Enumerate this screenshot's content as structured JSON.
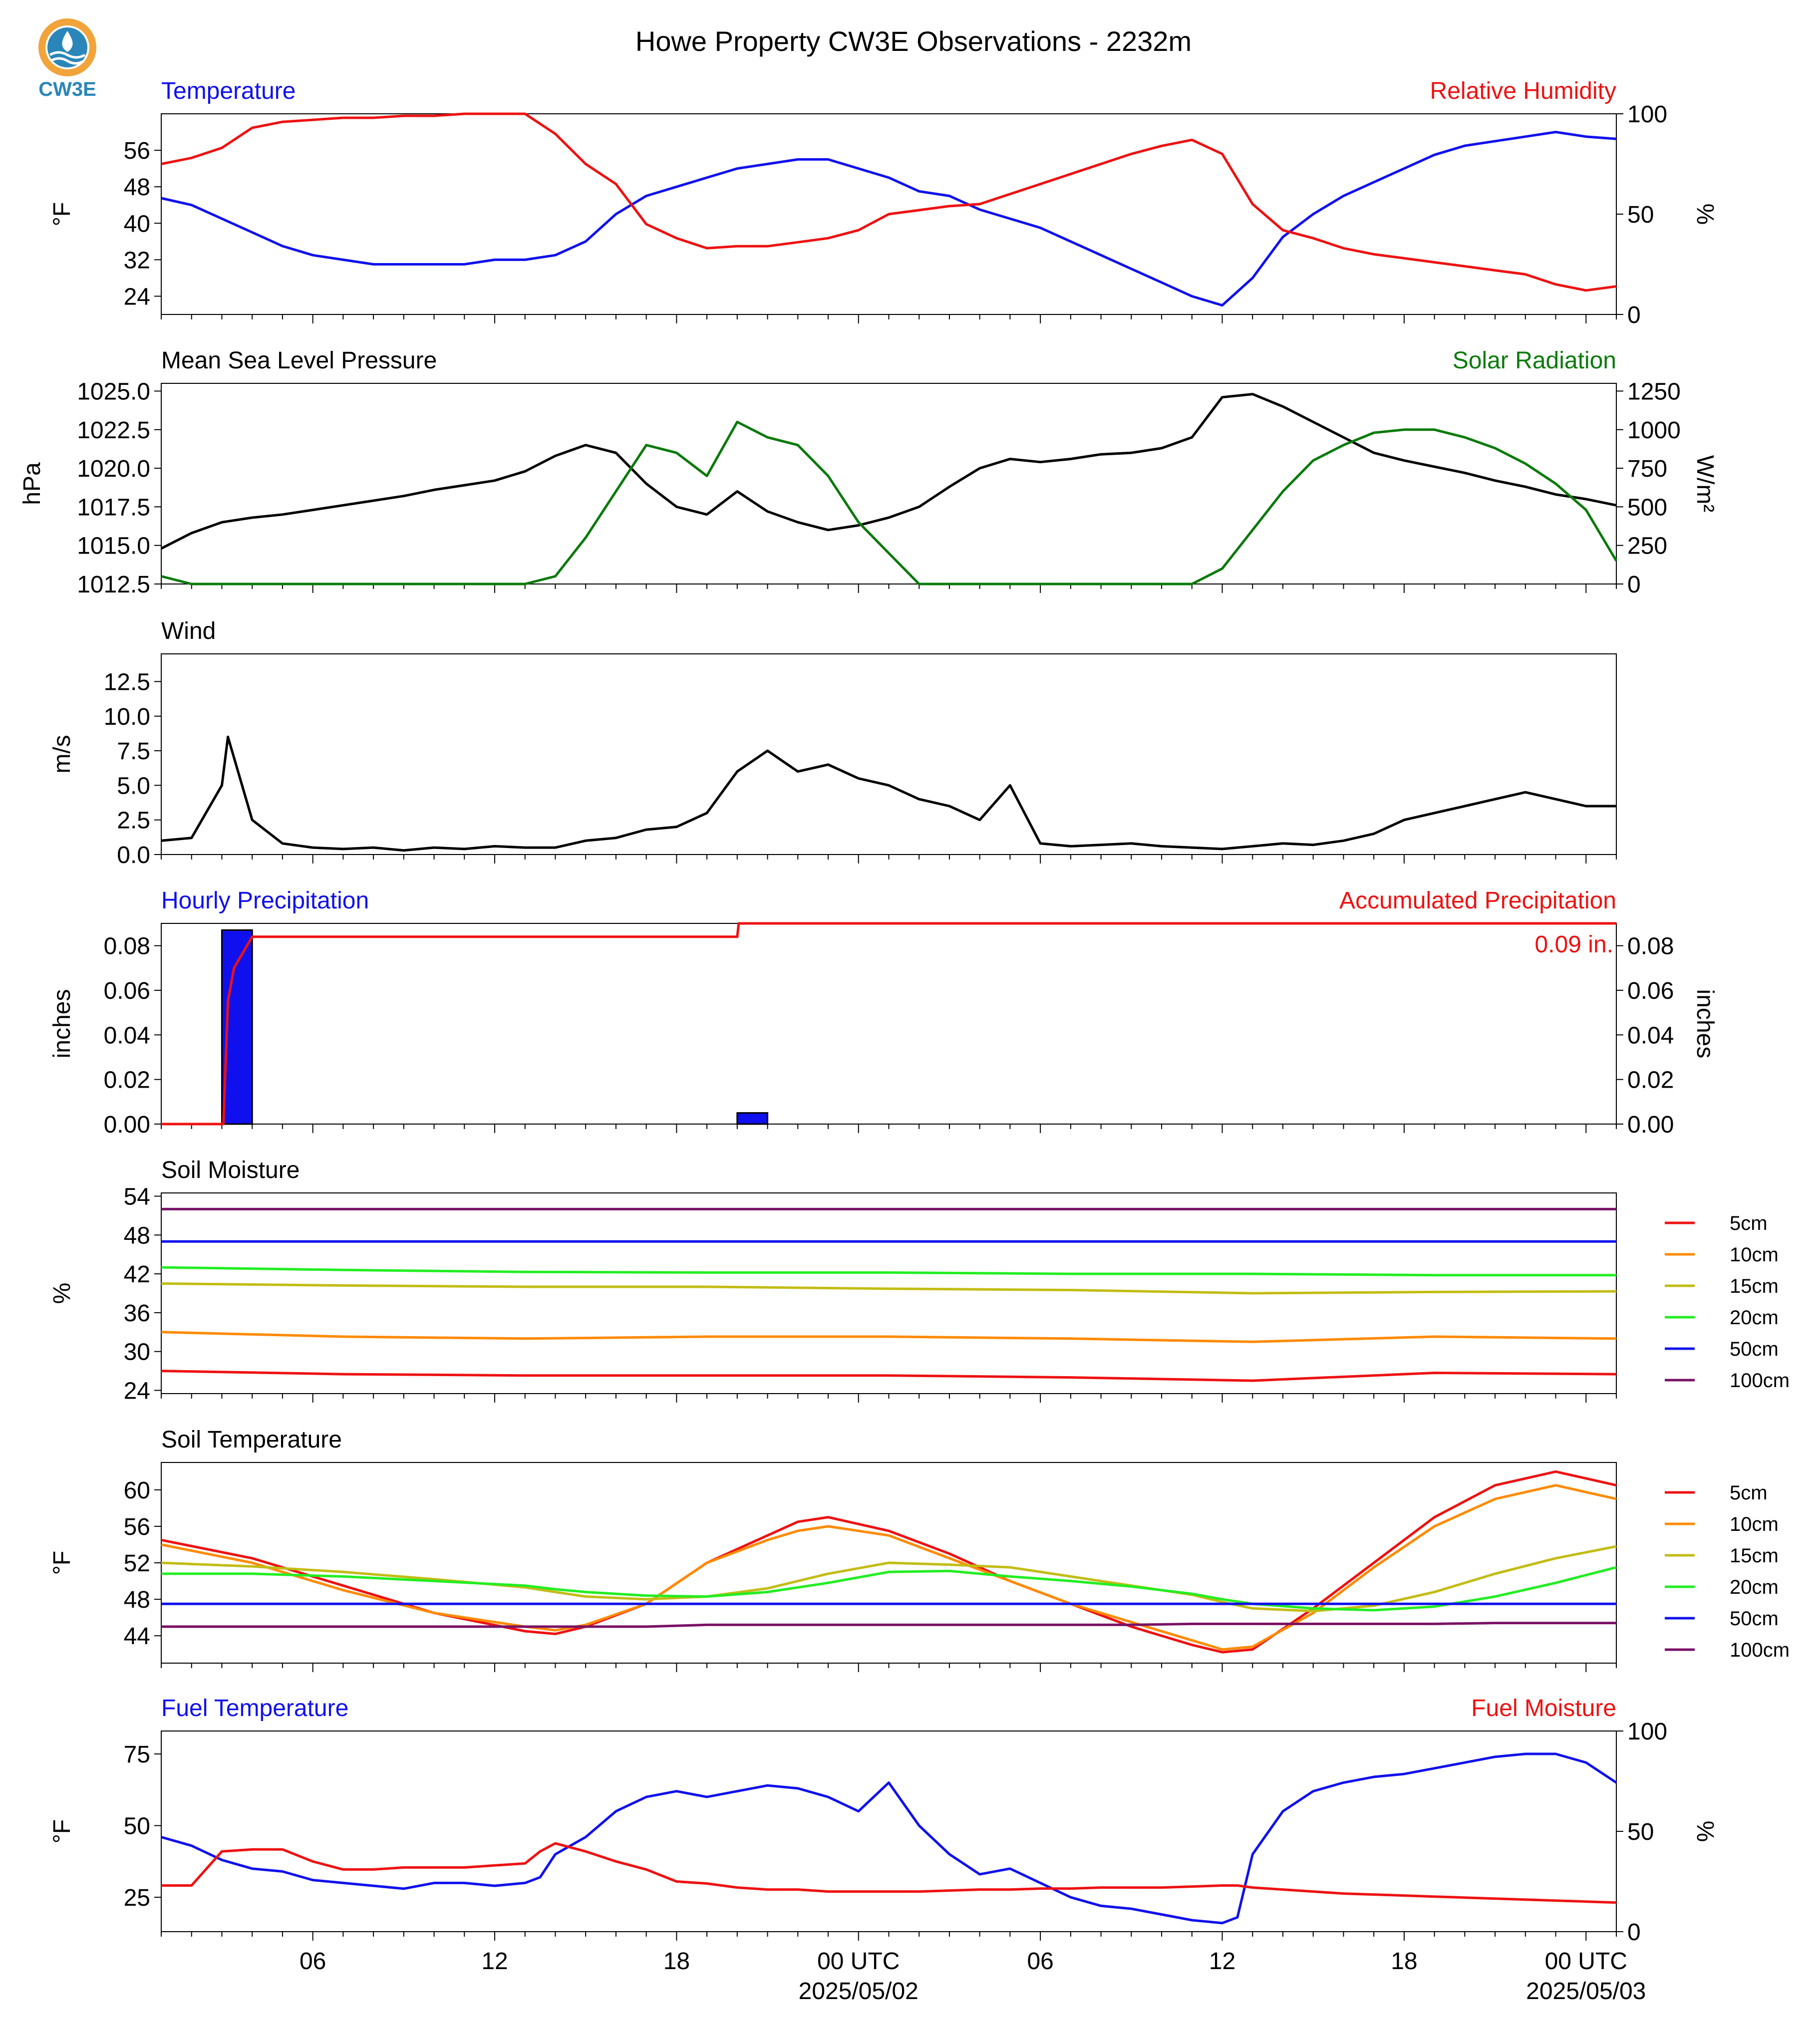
{
  "page": {
    "title": "Howe Property CW3E Observations - 2232m",
    "logo_text": "CW3E"
  },
  "x_axis": {
    "tick_labels": [
      "06",
      "12",
      "18",
      "00 UTC",
      "06",
      "12",
      "18",
      "00 UTC"
    ],
    "date_labels": [
      "2025/05/02",
      "2025/05/03"
    ]
  },
  "legend_soil": [
    "5cm",
    "10cm",
    "15cm",
    "20cm",
    "50cm",
    "100cm"
  ],
  "colors": {
    "blue": "#1010ee",
    "red": "#ee1111",
    "green": "#0a7a0a",
    "black": "#000000",
    "orange": "#ff8a00",
    "olive": "#c2bc14",
    "lime": "#22ee22",
    "purple": "#7a1166"
  },
  "chart_data": [
    {
      "type": "line",
      "panel": "temperature_rh",
      "title_left": "Temperature",
      "title_right": "Relative Humidity",
      "ylabel": "°F",
      "ylabel_right": "%",
      "ylim": [
        20,
        64
      ],
      "ylim_right": [
        0,
        100
      ],
      "yticks": [
        24,
        32,
        40,
        48,
        56
      ],
      "yticks_right": [
        0,
        50,
        100
      ],
      "x": [
        0,
        1,
        2,
        3,
        4,
        5,
        6,
        7,
        8,
        9,
        10,
        11,
        12,
        13,
        14,
        15,
        16,
        17,
        18,
        19,
        20,
        21,
        22,
        23,
        24,
        25,
        26,
        27,
        28,
        29,
        30,
        31,
        32,
        33,
        34,
        35,
        36,
        37,
        38,
        39,
        40,
        41,
        42,
        43,
        44,
        45,
        46,
        47,
        48
      ],
      "series": [
        {
          "name": "Temperature",
          "axis": "left",
          "color": "#1010ee",
          "values": [
            45.5,
            44,
            41,
            38,
            35,
            33,
            32,
            31,
            31,
            31,
            31,
            32,
            32,
            33,
            36,
            42,
            46,
            48,
            50,
            52,
            53,
            54,
            54,
            52,
            50,
            47,
            46,
            43,
            41,
            39,
            36,
            33,
            30,
            27,
            24,
            22,
            28,
            37,
            42,
            46,
            49,
            52,
            55,
            57,
            58,
            59,
            60,
            59,
            58.5
          ]
        },
        {
          "name": "Relative Humidity",
          "axis": "right",
          "color": "#ee1111",
          "values": [
            75,
            78,
            83,
            93,
            96,
            97,
            98,
            98,
            99,
            99,
            100,
            100,
            100,
            90,
            75,
            65,
            45,
            38,
            33,
            34,
            34,
            36,
            38,
            42,
            50,
            52,
            54,
            55,
            60,
            65,
            70,
            75,
            80,
            84,
            87,
            80,
            55,
            42,
            38,
            33,
            30,
            28,
            26,
            24,
            22,
            20,
            15,
            12,
            14
          ]
        }
      ]
    },
    {
      "type": "line",
      "panel": "pressure_solar",
      "title_left": "Mean Sea Level Pressure",
      "title_right": "Solar Radiation",
      "ylabel": "hPa",
      "ylabel_right": "W/m²",
      "ylim": [
        1012.5,
        1025.5
      ],
      "ylim_right": [
        0,
        1300
      ],
      "yticks": [
        1012.5,
        1015.0,
        1017.5,
        1020.0,
        1022.5,
        1025.0
      ],
      "yticks_right": [
        0,
        250,
        500,
        750,
        1000,
        1250
      ],
      "x": [
        0,
        1,
        2,
        3,
        4,
        5,
        6,
        7,
        8,
        9,
        10,
        11,
        12,
        13,
        14,
        15,
        16,
        17,
        18,
        19,
        20,
        21,
        22,
        23,
        24,
        25,
        26,
        27,
        28,
        29,
        30,
        31,
        32,
        33,
        34,
        35,
        36,
        37,
        38,
        39,
        40,
        41,
        42,
        43,
        44,
        45,
        46,
        47,
        48
      ],
      "series": [
        {
          "name": "Mean Sea Level Pressure",
          "axis": "left",
          "color": "#000000",
          "values": [
            1014.8,
            1015.8,
            1016.5,
            1016.8,
            1017.0,
            1017.3,
            1017.6,
            1017.9,
            1018.2,
            1018.6,
            1018.9,
            1019.2,
            1019.8,
            1020.8,
            1021.5,
            1021.0,
            1019.0,
            1017.5,
            1017.0,
            1018.5,
            1017.2,
            1016.5,
            1016.0,
            1016.3,
            1016.8,
            1017.5,
            1018.8,
            1020.0,
            1020.6,
            1020.4,
            1020.6,
            1020.9,
            1021.0,
            1021.3,
            1022.0,
            1024.6,
            1024.8,
            1024.0,
            1023.0,
            1022.0,
            1021.0,
            1020.5,
            1020.1,
            1019.7,
            1019.2,
            1018.8,
            1018.3,
            1018.0,
            1017.6
          ]
        },
        {
          "name": "Solar Radiation",
          "axis": "right",
          "color": "#0a7a0a",
          "values": [
            50,
            0,
            0,
            0,
            0,
            0,
            0,
            0,
            0,
            0,
            0,
            0,
            0,
            50,
            300,
            600,
            900,
            850,
            700,
            1050,
            950,
            900,
            700,
            400,
            200,
            0,
            0,
            0,
            0,
            0,
            0,
            0,
            0,
            0,
            0,
            100,
            350,
            600,
            800,
            900,
            980,
            1000,
            1000,
            950,
            880,
            780,
            650,
            480,
            150
          ]
        }
      ]
    },
    {
      "type": "line",
      "panel": "wind",
      "title_left": "Wind",
      "ylabel": "m/s",
      "ylim": [
        0,
        14.5
      ],
      "yticks": [
        0.0,
        2.5,
        5.0,
        7.5,
        10.0,
        12.5
      ],
      "x": [
        0,
        1,
        2,
        2.2,
        3,
        4,
        5,
        6,
        7,
        8,
        9,
        10,
        11,
        12,
        13,
        14,
        15,
        16,
        17,
        18,
        19,
        20,
        21,
        22,
        23,
        24,
        25,
        26,
        27,
        28,
        29,
        30,
        31,
        32,
        33,
        34,
        35,
        36,
        37,
        38,
        39,
        40,
        41,
        42,
        43,
        44,
        45,
        46,
        47,
        48
      ],
      "series": [
        {
          "name": "Wind",
          "color": "#000000",
          "values": [
            1.0,
            1.2,
            5.0,
            8.5,
            2.5,
            0.8,
            0.5,
            0.4,
            0.5,
            0.3,
            0.5,
            0.4,
            0.6,
            0.5,
            0.5,
            1.0,
            1.2,
            1.8,
            2.0,
            3.0,
            6.0,
            7.5,
            6.0,
            6.5,
            5.5,
            5.0,
            4.0,
            3.5,
            2.5,
            5.0,
            0.8,
            0.6,
            0.7,
            0.8,
            0.6,
            0.5,
            0.4,
            0.6,
            0.8,
            0.7,
            1.0,
            1.5,
            2.5,
            3.0,
            3.5,
            4.0,
            4.5,
            4.0,
            3.5,
            3.5
          ]
        }
      ]
    },
    {
      "type": "bar",
      "panel": "precipitation",
      "title_left": "Hourly Precipitation",
      "title_right": "Accumulated Precipitation",
      "ylabel": "inches",
      "ylabel_right": "inches",
      "ylim": [
        0,
        0.09
      ],
      "yticks": [
        0.0,
        0.02,
        0.04,
        0.06,
        0.08
      ],
      "yticks_right": [
        0.0,
        0.02,
        0.04,
        0.06,
        0.08
      ],
      "annotation": "0.09 in.",
      "bars": [
        {
          "x": 2,
          "value": 0.087
        },
        {
          "x": 19,
          "value": 0.005
        }
      ],
      "accumulated": {
        "name": "Accumulated Precipitation",
        "color": "#ee1111",
        "x": [
          0,
          2.05,
          2.2,
          2.4,
          3,
          19,
          19.05,
          48
        ],
        "values": [
          0,
          0,
          0.055,
          0.07,
          0.084,
          0.084,
          0.09,
          0.09
        ]
      }
    },
    {
      "type": "line",
      "panel": "soil_moisture",
      "title_left": "Soil Moisture",
      "ylabel": "%",
      "ylim": [
        23.5,
        54.5
      ],
      "yticks": [
        24,
        30,
        36,
        42,
        48,
        54
      ],
      "x": [
        0,
        6,
        12,
        18,
        24,
        30,
        36,
        42,
        48
      ],
      "series": [
        {
          "name": "5cm",
          "color": "#ee1111",
          "values": [
            27,
            26.5,
            26.3,
            26.3,
            26.3,
            26,
            25.5,
            26.7,
            26.5
          ]
        },
        {
          "name": "10cm",
          "color": "#ff8a00",
          "values": [
            33,
            32.3,
            32,
            32.3,
            32.3,
            32,
            31.5,
            32.3,
            32
          ]
        },
        {
          "name": "15cm",
          "color": "#c2bc14",
          "values": [
            40.5,
            40.2,
            40,
            40,
            39.7,
            39.5,
            39,
            39.2,
            39.3
          ]
        },
        {
          "name": "20cm",
          "color": "#22ee22",
          "values": [
            43,
            42.6,
            42.3,
            42.2,
            42.2,
            42,
            42,
            41.8,
            41.8
          ]
        },
        {
          "name": "50cm",
          "color": "#1010ee",
          "values": [
            47,
            47,
            47,
            47,
            47,
            47,
            47,
            47,
            47
          ]
        },
        {
          "name": "100cm",
          "color": "#7a1166",
          "values": [
            52,
            52,
            52,
            52,
            52,
            52,
            52,
            52,
            52
          ]
        }
      ]
    },
    {
      "type": "line",
      "panel": "soil_temperature",
      "title_left": "Soil Temperature",
      "ylabel": "°F",
      "ylim": [
        41,
        63
      ],
      "yticks": [
        44,
        48,
        52,
        56,
        60
      ],
      "x": [
        0,
        3,
        6,
        9,
        12,
        13,
        14,
        16,
        18,
        20,
        21,
        22,
        24,
        26,
        28,
        30,
        32,
        34,
        35,
        36,
        38,
        40,
        42,
        44,
        46,
        48
      ],
      "series": [
        {
          "name": "5cm",
          "color": "#ee1111",
          "values": [
            54.5,
            52.5,
            49.5,
            46.5,
            44.5,
            44.2,
            45,
            47.5,
            52,
            55,
            56.5,
            57,
            55.5,
            53,
            50,
            47.5,
            45,
            43,
            42.2,
            42.5,
            47,
            52,
            57,
            60.5,
            62,
            60.5
          ]
        },
        {
          "name": "10cm",
          "color": "#ff8a00",
          "values": [
            54,
            52,
            49,
            46.5,
            45,
            44.6,
            45.2,
            47.5,
            52,
            54.5,
            55.5,
            56,
            55,
            52.5,
            50,
            47.5,
            45.5,
            43.5,
            42.5,
            42.8,
            46.5,
            51.5,
            56,
            59,
            60.5,
            59
          ]
        },
        {
          "name": "15cm",
          "color": "#c2bc14",
          "values": [
            52,
            51.6,
            51,
            50.2,
            49.3,
            48.8,
            48.3,
            48,
            48.3,
            49.2,
            50,
            50.8,
            52,
            51.8,
            51.5,
            50.5,
            49.5,
            48.5,
            47.7,
            47,
            46.7,
            47.3,
            48.8,
            50.8,
            52.5,
            53.8
          ]
        },
        {
          "name": "20cm",
          "color": "#22ee22",
          "values": [
            50.8,
            50.8,
            50.5,
            50.0,
            49.5,
            49.1,
            48.8,
            48.4,
            48.3,
            48.8,
            49.3,
            49.8,
            51,
            51.1,
            50.5,
            50.0,
            49.4,
            48.6,
            48.0,
            47.5,
            47.0,
            46.8,
            47.2,
            48.3,
            49.8,
            51.5
          ]
        },
        {
          "name": "50cm",
          "color": "#1010ee",
          "values": [
            47.5,
            47.5,
            47.5,
            47.5,
            47.5,
            47.5,
            47.5,
            47.5,
            47.5,
            47.5,
            47.5,
            47.5,
            47.5,
            47.5,
            47.5,
            47.5,
            47.5,
            47.5,
            47.5,
            47.5,
            47.5,
            47.5,
            47.5,
            47.5,
            47.5,
            47.5
          ]
        },
        {
          "name": "100cm",
          "color": "#7a1166",
          "values": [
            45,
            45,
            45,
            45,
            45,
            45,
            45,
            45,
            45.2,
            45.2,
            45.2,
            45.2,
            45.2,
            45.2,
            45.2,
            45.2,
            45.2,
            45.3,
            45.3,
            45.3,
            45.3,
            45.3,
            45.3,
            45.4,
            45.4,
            45.4
          ]
        }
      ]
    },
    {
      "type": "line",
      "panel": "fuel",
      "title_left": "Fuel Temperature",
      "title_right": "Fuel Moisture",
      "ylabel": "°F",
      "ylabel_right": "%",
      "ylim": [
        13,
        83
      ],
      "ylim_right": [
        0,
        100
      ],
      "yticks": [
        25,
        50,
        75
      ],
      "yticks_right": [
        0,
        50,
        100
      ],
      "x": [
        0,
        1,
        2,
        3,
        4,
        5,
        6,
        7,
        8,
        9,
        10,
        11,
        12,
        12.5,
        13,
        14,
        15,
        16,
        17,
        18,
        19,
        20,
        21,
        22,
        23,
        24,
        25,
        26,
        27,
        28,
        29,
        30,
        31,
        32,
        33,
        34,
        35,
        35.5,
        36,
        37,
        38,
        39,
        40,
        41,
        42,
        43,
        44,
        45,
        46,
        47,
        48
      ],
      "series": [
        {
          "name": "Fuel Temperature",
          "color": "#1010ee",
          "values": [
            46,
            43,
            38,
            35,
            34,
            31,
            30,
            29,
            28,
            30,
            30,
            29,
            30,
            32,
            40,
            46,
            55,
            60,
            62,
            60,
            62,
            64,
            63,
            60,
            55,
            65,
            50,
            40,
            33,
            35,
            30,
            25,
            22,
            21,
            19,
            17,
            16,
            18,
            40,
            55,
            62,
            65,
            67,
            68,
            70,
            72,
            74,
            75,
            75,
            72,
            65
          ]
        },
        {
          "name": "Fuel Moisture",
          "axis": "right",
          "color": "#ee1111",
          "values": [
            23,
            23,
            40,
            41,
            41,
            35,
            31,
            31,
            32,
            32,
            32,
            33,
            34,
            40,
            44,
            40,
            35,
            31,
            25,
            24,
            22,
            21,
            21,
            20,
            20,
            20,
            20,
            20.5,
            21,
            21,
            21.5,
            21.5,
            22,
            22,
            22,
            22.5,
            23,
            23,
            22,
            21,
            20,
            19,
            18.5,
            18,
            17.5,
            17,
            16.5,
            16,
            15.5,
            15,
            14.5
          ]
        }
      ]
    }
  ]
}
